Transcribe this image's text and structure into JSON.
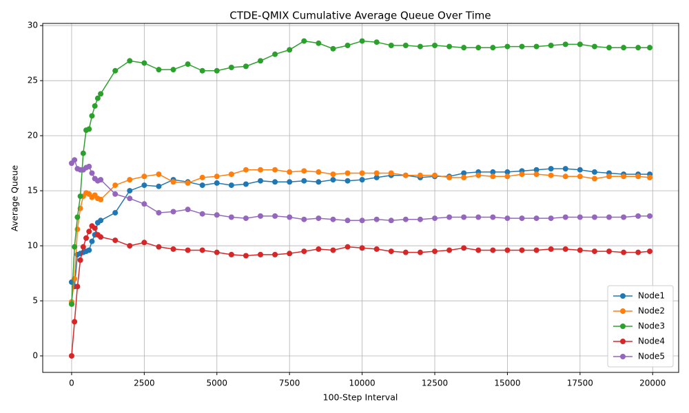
{
  "chart_data": {
    "type": "line",
    "title": "CTDE-QMIX Cumulative Average Queue Over Time",
    "x_label": "100-Step Interval",
    "y_label": "Average Queue",
    "x": [
      0,
      100,
      200,
      300,
      400,
      500,
      600,
      700,
      800,
      900,
      1000,
      1500,
      2000,
      2500,
      3000,
      3500,
      4000,
      4500,
      5000,
      5500,
      6000,
      6500,
      7000,
      7500,
      8000,
      8500,
      9000,
      9500,
      10000,
      10500,
      11000,
      11500,
      12000,
      12500,
      13000,
      13500,
      14000,
      14500,
      15000,
      15500,
      16000,
      16500,
      17000,
      17500,
      18000,
      18500,
      19000,
      19500,
      19900
    ],
    "series": [
      {
        "name": "Node1",
        "color": "#1f77b4",
        "values": [
          6.7,
          6.3,
          9.2,
          9.3,
          9.4,
          9.5,
          9.6,
          10.4,
          11.0,
          12.1,
          12.3,
          13.0,
          15.0,
          15.5,
          15.4,
          16.0,
          15.8,
          15.5,
          15.7,
          15.5,
          15.6,
          15.9,
          15.8,
          15.8,
          15.9,
          15.8,
          16.0,
          15.9,
          16.0,
          16.2,
          16.4,
          16.4,
          16.2,
          16.3,
          16.3,
          16.6,
          16.7,
          16.7,
          16.7,
          16.8,
          16.9,
          17.0,
          17.0,
          16.9,
          16.7,
          16.6,
          16.5,
          16.5,
          16.5
        ]
      },
      {
        "name": "Node2",
        "color": "#ff7f0e",
        "values": [
          4.9,
          7.0,
          11.5,
          13.4,
          14.5,
          14.8,
          14.7,
          14.4,
          14.6,
          14.3,
          14.2,
          15.5,
          16.0,
          16.3,
          16.5,
          15.8,
          15.7,
          16.2,
          16.3,
          16.5,
          16.9,
          16.9,
          16.9,
          16.7,
          16.8,
          16.7,
          16.5,
          16.6,
          16.6,
          16.6,
          16.6,
          16.4,
          16.4,
          16.4,
          16.2,
          16.2,
          16.4,
          16.3,
          16.3,
          16.5,
          16.5,
          16.4,
          16.3,
          16.3,
          16.1,
          16.3,
          16.3,
          16.3,
          16.2
        ]
      },
      {
        "name": "Node3",
        "color": "#2ca02c",
        "values": [
          4.7,
          9.9,
          12.6,
          14.5,
          18.4,
          20.5,
          20.6,
          21.8,
          22.7,
          23.4,
          23.8,
          25.9,
          26.8,
          26.6,
          26.0,
          26.0,
          26.5,
          25.9,
          25.9,
          26.2,
          26.3,
          26.8,
          27.4,
          27.8,
          28.6,
          28.4,
          27.9,
          28.2,
          28.6,
          28.5,
          28.2,
          28.2,
          28.1,
          28.2,
          28.1,
          28.0,
          28.0,
          28.0,
          28.1,
          28.1,
          28.1,
          28.2,
          28.3,
          28.3,
          28.1,
          28.0,
          28.0,
          28.0,
          28.0
        ]
      },
      {
        "name": "Node4",
        "color": "#d62728",
        "values": [
          0,
          3.1,
          6.3,
          8.7,
          9.9,
          10.7,
          11.3,
          11.8,
          11.6,
          11.0,
          10.8,
          10.5,
          10.0,
          10.3,
          9.9,
          9.7,
          9.6,
          9.6,
          9.4,
          9.2,
          9.1,
          9.2,
          9.2,
          9.3,
          9.5,
          9.7,
          9.6,
          9.9,
          9.8,
          9.7,
          9.5,
          9.4,
          9.4,
          9.5,
          9.6,
          9.8,
          9.6,
          9.6,
          9.6,
          9.6,
          9.6,
          9.7,
          9.7,
          9.6,
          9.5,
          9.5,
          9.4,
          9.4,
          9.5
        ]
      },
      {
        "name": "Node5",
        "color": "#9467bd",
        "values": [
          17.5,
          17.8,
          17.0,
          16.9,
          16.9,
          17.1,
          17.2,
          16.6,
          16.1,
          15.9,
          16.0,
          14.7,
          14.3,
          13.8,
          13.0,
          13.1,
          13.3,
          12.9,
          12.8,
          12.6,
          12.5,
          12.7,
          12.7,
          12.6,
          12.4,
          12.5,
          12.4,
          12.3,
          12.3,
          12.4,
          12.3,
          12.4,
          12.4,
          12.5,
          12.6,
          12.6,
          12.6,
          12.6,
          12.5,
          12.5,
          12.5,
          12.5,
          12.6,
          12.6,
          12.6,
          12.6,
          12.6,
          12.7,
          12.7
        ]
      }
    ],
    "xlim": [
      -995,
      20895
    ],
    "ylim": [
      -1.5,
      30.2
    ],
    "xticks": [
      0,
      2500,
      5000,
      7500,
      10000,
      12500,
      15000,
      17500,
      20000
    ],
    "yticks": [
      0,
      5,
      10,
      15,
      20,
      25,
      30
    ],
    "grid": true,
    "legend": "lower right"
  }
}
